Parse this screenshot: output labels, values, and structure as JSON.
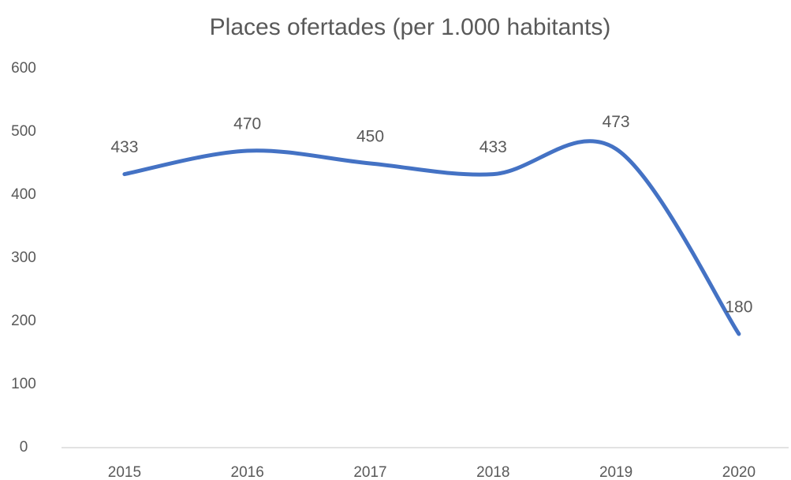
{
  "chart_data": {
    "type": "line",
    "title": "Places ofertades (per 1.000 habitants)",
    "categories": [
      "2015",
      "2016",
      "2017",
      "2018",
      "2019",
      "2020"
    ],
    "series": [
      {
        "name": "Places ofertades",
        "color": "#4472c4",
        "values": [
          433,
          470,
          450,
          433,
          473,
          180
        ]
      }
    ],
    "ylim": [
      0,
      600
    ],
    "yticks": [
      0,
      100,
      200,
      300,
      400,
      500,
      600
    ],
    "grid": false,
    "smooth": true
  }
}
